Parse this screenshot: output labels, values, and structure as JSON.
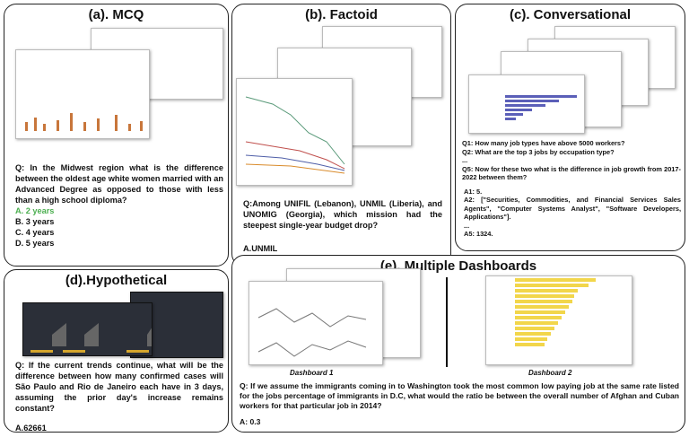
{
  "panels": {
    "mcq": {
      "title": "(a). MCQ",
      "question": "Q: In the Midwest region what is the difference between the oldest age white women married with an Advanced Degree as opposed to those with less than a high school diploma?",
      "options": [
        "A. 2 years",
        "B. 3 years",
        "C. 4 years",
        "D. 5 years"
      ],
      "correct_option": "A. 2 years",
      "correct_color": "#4caf50"
    },
    "factoid": {
      "title": "(b). Factoid",
      "question": "Q:Among UNIFIL (Lebanon), UNMIL (Liberia), and UNOMIG (Georgia), which mission had the steepest single-year budget drop?",
      "answer": "A.UNMIL"
    },
    "conversational": {
      "title": "(c). Conversational",
      "lines": [
        "Q1: How many job types have above 5000 workers?",
        "Q2: What are the top 3 jobs by occupation type?",
        "...",
        "Q5: Now for these two what is the difference in job growth from 2017-2022 between them?",
        "A1: 5.",
        "A2: [\"Securities, Commodities, and Financial Services Sales Agents\", \"Computer Systems Analyst\", \"Software Developers, Applications\"].",
        "...",
        "A5: 1324."
      ]
    },
    "hypothetical": {
      "title": "(d).Hypothetical",
      "question": "Q: If the current trends continue, what will be the difference between how many confirmed cases will São Paulo and Rio de Janeiro each have in 3 days, assuming the prior day's increase remains constant?",
      "answer": "A.62661"
    },
    "multiple": {
      "title": "(e). Multiple Dashboards",
      "caption1": "Dashboard 1",
      "caption2": "Dashboard 2",
      "question": "Q: If we assume the immigrants coming in to Washington took the most common low paying job at the same rate listed for the jobs percentage of immigrants in D.C, what would the ratio be between the overall number of Afghan and Cuban workers for that particular job in 2014?",
      "answer": "A: 0.3"
    }
  }
}
